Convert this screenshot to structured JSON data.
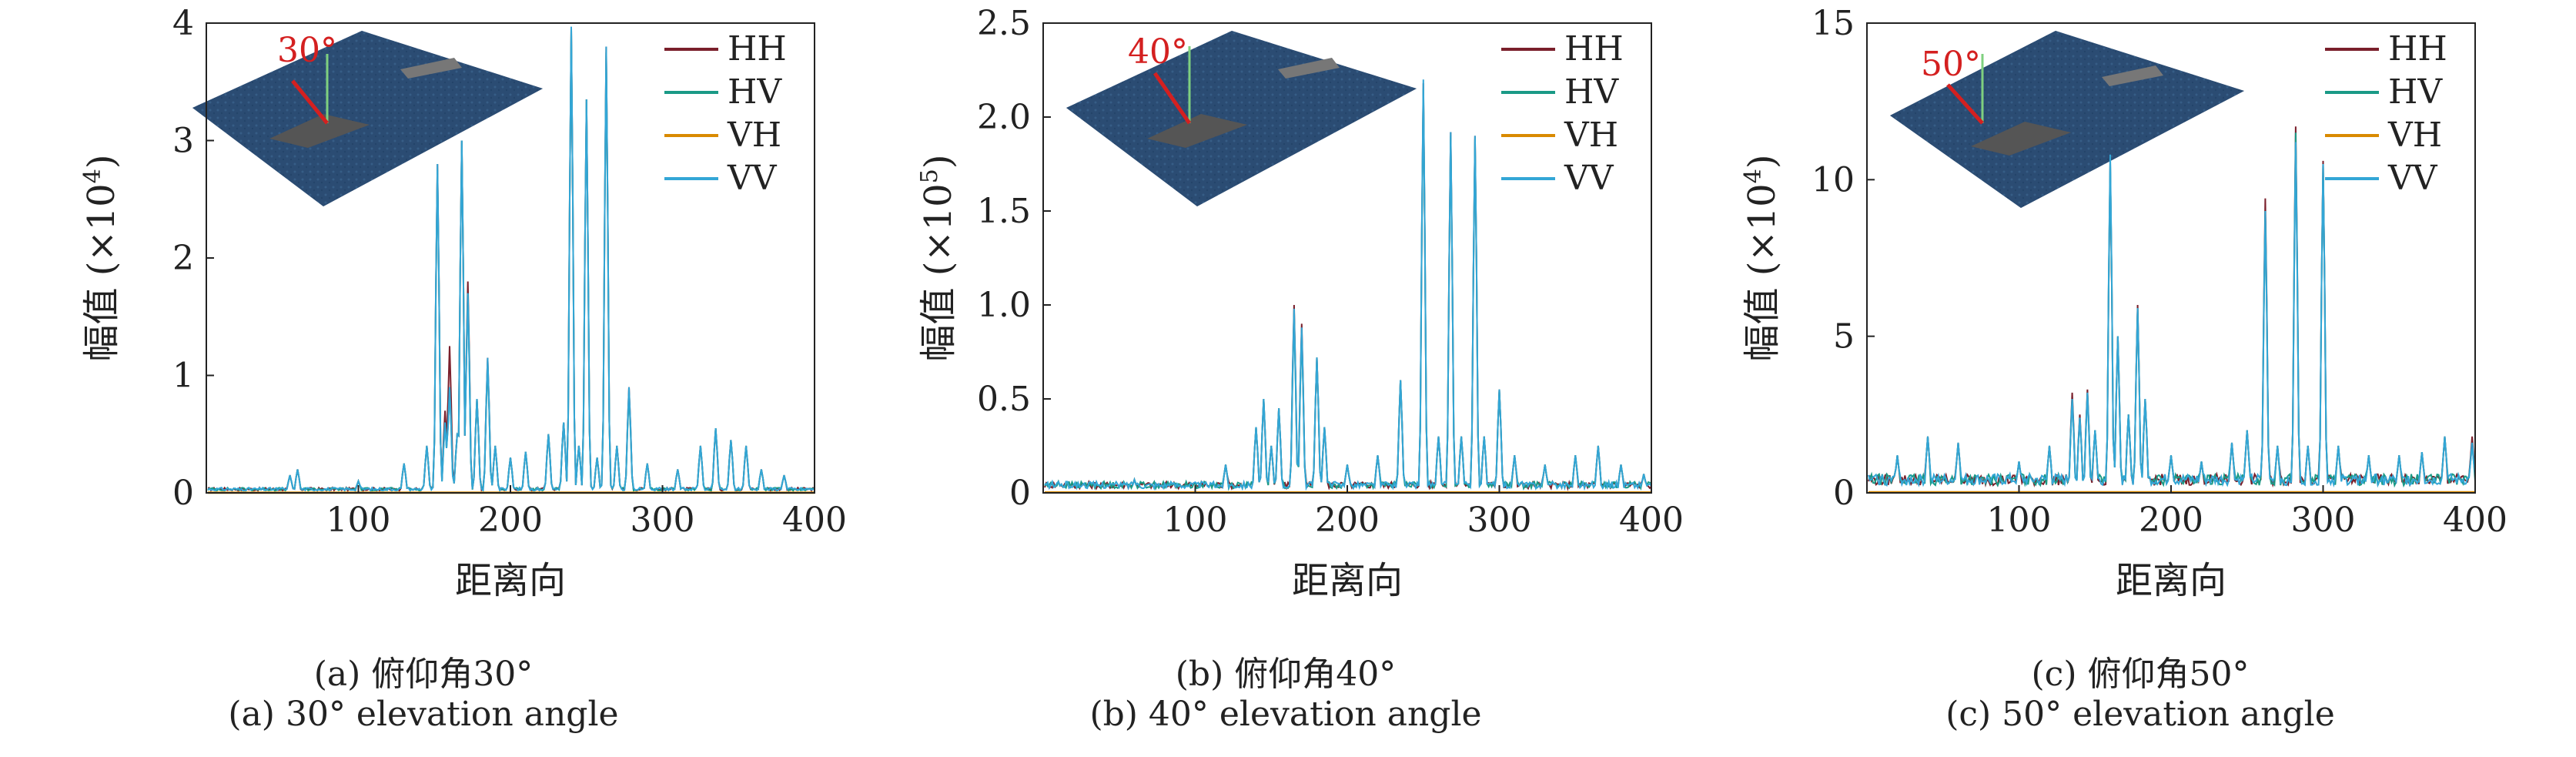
{
  "panels": [
    {
      "id": "a",
      "caption_cn": "(a) 俯仰角30°",
      "caption_en": "(a) 30° elevation angle",
      "inset_angle_label": "30°",
      "ylabel_prefix": "幅值 (×10",
      "ylabel_exp": "4",
      "ylabel_suffix": ")",
      "xlabel": "距离向",
      "xticks": [
        "100",
        "200",
        "300",
        "400"
      ],
      "yticks": [
        "0",
        "1",
        "2",
        "3",
        "4"
      ]
    },
    {
      "id": "b",
      "caption_cn": "(b) 俯仰角40°",
      "caption_en": "(b) 40° elevation angle",
      "inset_angle_label": "40°",
      "ylabel_prefix": "幅值 (×10",
      "ylabel_exp": "5",
      "ylabel_suffix": ")",
      "xlabel": "距离向",
      "xticks": [
        "100",
        "200",
        "300",
        "400"
      ],
      "yticks": [
        "0",
        "0.5",
        "1.0",
        "1.5",
        "2.0",
        "2.5"
      ]
    },
    {
      "id": "c",
      "caption_cn": "(c) 俯仰角50°",
      "caption_en": "(c) 50° elevation angle",
      "inset_angle_label": "50°",
      "ylabel_prefix": "幅值 (×10",
      "ylabel_exp": "4",
      "ylabel_suffix": ")",
      "xlabel": "距离向",
      "xticks": [
        "100",
        "200",
        "300",
        "400"
      ],
      "yticks": [
        "0",
        "5",
        "10",
        "15"
      ]
    }
  ],
  "colors": {
    "HH": "#7a1f2b",
    "HV": "#1a9a86",
    "VH": "#d98a00",
    "VV": "#33a6d6",
    "inset_sea": "#2c4f78",
    "angle_red": "#d42020"
  },
  "chart_data": [
    {
      "type": "line",
      "xlim": [
        0,
        400
      ],
      "ylim": [
        0,
        4
      ],
      "grid": false,
      "legend_position": "top-right",
      "baseline": 0.03,
      "peaks": {
        "HH": [
          [
            55,
            0.15
          ],
          [
            60,
            0.2
          ],
          [
            100,
            0.1
          ],
          [
            130,
            0.25
          ],
          [
            145,
            0.4
          ],
          [
            152,
            2.8
          ],
          [
            157,
            0.7
          ],
          [
            160,
            1.25
          ],
          [
            165,
            0.5
          ],
          [
            168,
            3.0
          ],
          [
            172,
            1.8
          ],
          [
            178,
            0.8
          ],
          [
            185,
            1.15
          ],
          [
            190,
            0.4
          ],
          [
            200,
            0.3
          ],
          [
            210,
            0.35
          ],
          [
            225,
            0.5
          ],
          [
            235,
            0.6
          ],
          [
            240,
            3.95
          ],
          [
            245,
            0.4
          ],
          [
            250,
            3.35
          ],
          [
            257,
            0.3
          ],
          [
            263,
            3.8
          ],
          [
            270,
            0.4
          ],
          [
            278,
            0.9
          ],
          [
            290,
            0.25
          ],
          [
            310,
            0.2
          ],
          [
            325,
            0.4
          ],
          [
            335,
            0.55
          ],
          [
            345,
            0.45
          ],
          [
            355,
            0.4
          ],
          [
            365,
            0.2
          ],
          [
            380,
            0.15
          ]
        ],
        "HV": [
          [
            55,
            0.15
          ],
          [
            60,
            0.2
          ],
          [
            100,
            0.1
          ],
          [
            130,
            0.25
          ],
          [
            145,
            0.4
          ],
          [
            152,
            2.75
          ],
          [
            157,
            0.6
          ],
          [
            160,
            0.9
          ],
          [
            165,
            0.5
          ],
          [
            168,
            3.0
          ],
          [
            172,
            1.7
          ],
          [
            178,
            0.8
          ],
          [
            185,
            1.1
          ],
          [
            190,
            0.4
          ],
          [
            200,
            0.3
          ],
          [
            210,
            0.35
          ],
          [
            225,
            0.5
          ],
          [
            235,
            0.6
          ],
          [
            240,
            3.95
          ],
          [
            245,
            0.4
          ],
          [
            250,
            3.35
          ],
          [
            257,
            0.3
          ],
          [
            263,
            3.75
          ],
          [
            270,
            0.4
          ],
          [
            278,
            0.85
          ],
          [
            290,
            0.25
          ],
          [
            310,
            0.2
          ],
          [
            325,
            0.4
          ],
          [
            335,
            0.55
          ],
          [
            345,
            0.45
          ],
          [
            355,
            0.4
          ],
          [
            365,
            0.2
          ],
          [
            380,
            0.15
          ]
        ],
        "VH": [
          [
            160,
            0.01
          ]
        ],
        "VV": [
          [
            55,
            0.15
          ],
          [
            60,
            0.2
          ],
          [
            100,
            0.1
          ],
          [
            130,
            0.25
          ],
          [
            145,
            0.4
          ],
          [
            152,
            2.8
          ],
          [
            157,
            0.6
          ],
          [
            160,
            0.9
          ],
          [
            165,
            0.5
          ],
          [
            168,
            3.0
          ],
          [
            172,
            1.7
          ],
          [
            178,
            0.8
          ],
          [
            185,
            1.15
          ],
          [
            190,
            0.4
          ],
          [
            200,
            0.3
          ],
          [
            210,
            0.35
          ],
          [
            225,
            0.5
          ],
          [
            235,
            0.6
          ],
          [
            240,
            3.97
          ],
          [
            245,
            0.4
          ],
          [
            250,
            3.35
          ],
          [
            257,
            0.3
          ],
          [
            263,
            3.8
          ],
          [
            270,
            0.4
          ],
          [
            278,
            0.9
          ],
          [
            290,
            0.25
          ],
          [
            310,
            0.2
          ],
          [
            325,
            0.4
          ],
          [
            335,
            0.55
          ],
          [
            345,
            0.45
          ],
          [
            355,
            0.4
          ],
          [
            365,
            0.2
          ],
          [
            380,
            0.15
          ]
        ]
      },
      "legend": [
        "HH",
        "HV",
        "VH",
        "VV"
      ]
    },
    {
      "type": "line",
      "xlim": [
        0,
        400
      ],
      "ylim": [
        0,
        2.5
      ],
      "grid": false,
      "legend_position": "top-right",
      "baseline": 0.04,
      "peaks": {
        "HH": [
          [
            10,
            0.06
          ],
          [
            60,
            0.07
          ],
          [
            120,
            0.15
          ],
          [
            140,
            0.35
          ],
          [
            145,
            0.5
          ],
          [
            150,
            0.25
          ],
          [
            155,
            0.45
          ],
          [
            165,
            1.0
          ],
          [
            170,
            0.9
          ],
          [
            180,
            0.72
          ],
          [
            185,
            0.35
          ],
          [
            200,
            0.15
          ],
          [
            220,
            0.2
          ],
          [
            235,
            0.6
          ],
          [
            250,
            2.18
          ],
          [
            260,
            0.3
          ],
          [
            268,
            1.92
          ],
          [
            275,
            0.3
          ],
          [
            284,
            1.9
          ],
          [
            290,
            0.3
          ],
          [
            300,
            0.55
          ],
          [
            310,
            0.2
          ],
          [
            330,
            0.15
          ],
          [
            350,
            0.2
          ],
          [
            365,
            0.25
          ],
          [
            380,
            0.15
          ],
          [
            395,
            0.1
          ]
        ],
        "HV": [
          [
            10,
            0.06
          ],
          [
            60,
            0.07
          ],
          [
            120,
            0.15
          ],
          [
            140,
            0.35
          ],
          [
            145,
            0.5
          ],
          [
            150,
            0.25
          ],
          [
            155,
            0.45
          ],
          [
            165,
            0.95
          ],
          [
            170,
            0.85
          ],
          [
            180,
            0.72
          ],
          [
            185,
            0.35
          ],
          [
            200,
            0.15
          ],
          [
            220,
            0.2
          ],
          [
            235,
            0.6
          ],
          [
            250,
            2.15
          ],
          [
            260,
            0.3
          ],
          [
            268,
            1.9
          ],
          [
            275,
            0.3
          ],
          [
            284,
            1.88
          ],
          [
            290,
            0.3
          ],
          [
            300,
            0.55
          ],
          [
            310,
            0.2
          ],
          [
            330,
            0.15
          ],
          [
            350,
            0.2
          ],
          [
            365,
            0.25
          ],
          [
            380,
            0.15
          ],
          [
            395,
            0.1
          ]
        ],
        "VH": [
          [
            160,
            0.005
          ]
        ],
        "VV": [
          [
            10,
            0.06
          ],
          [
            60,
            0.07
          ],
          [
            120,
            0.15
          ],
          [
            140,
            0.35
          ],
          [
            145,
            0.5
          ],
          [
            150,
            0.25
          ],
          [
            155,
            0.45
          ],
          [
            165,
            0.98
          ],
          [
            170,
            0.88
          ],
          [
            180,
            0.72
          ],
          [
            185,
            0.35
          ],
          [
            200,
            0.15
          ],
          [
            220,
            0.2
          ],
          [
            235,
            0.6
          ],
          [
            250,
            2.2
          ],
          [
            260,
            0.3
          ],
          [
            268,
            1.92
          ],
          [
            275,
            0.3
          ],
          [
            284,
            1.9
          ],
          [
            290,
            0.3
          ],
          [
            300,
            0.55
          ],
          [
            310,
            0.2
          ],
          [
            330,
            0.15
          ],
          [
            350,
            0.2
          ],
          [
            365,
            0.25
          ],
          [
            380,
            0.15
          ],
          [
            395,
            0.1
          ]
        ]
      },
      "legend": [
        "HH",
        "HV",
        "VH",
        "VV"
      ]
    },
    {
      "type": "line",
      "xlim": [
        0,
        400
      ],
      "ylim": [
        0,
        15
      ],
      "grid": false,
      "legend_position": "top-right",
      "baseline": 0.4,
      "peaks": {
        "HH": [
          [
            20,
            1.2
          ],
          [
            40,
            1.8
          ],
          [
            60,
            1.6
          ],
          [
            100,
            1.0
          ],
          [
            120,
            1.5
          ],
          [
            135,
            3.2
          ],
          [
            140,
            2.5
          ],
          [
            145,
            3.3
          ],
          [
            150,
            2.0
          ],
          [
            160,
            10.5
          ],
          [
            165,
            5.0
          ],
          [
            172,
            2.5
          ],
          [
            178,
            6.0
          ],
          [
            183,
            3.0
          ],
          [
            200,
            1.2
          ],
          [
            220,
            1.0
          ],
          [
            240,
            1.6
          ],
          [
            250,
            2.0
          ],
          [
            262,
            9.4
          ],
          [
            270,
            1.5
          ],
          [
            282,
            11.7
          ],
          [
            290,
            1.5
          ],
          [
            300,
            10.6
          ],
          [
            310,
            1.5
          ],
          [
            330,
            1.2
          ],
          [
            350,
            1.2
          ],
          [
            365,
            1.3
          ],
          [
            380,
            1.8
          ],
          [
            398,
            1.8
          ]
        ],
        "HV": [
          [
            20,
            1.2
          ],
          [
            40,
            1.8
          ],
          [
            60,
            1.6
          ],
          [
            100,
            1.0
          ],
          [
            120,
            1.5
          ],
          [
            135,
            3.0
          ],
          [
            140,
            2.4
          ],
          [
            145,
            3.2
          ],
          [
            150,
            2.0
          ],
          [
            160,
            10.6
          ],
          [
            165,
            5.0
          ],
          [
            172,
            2.5
          ],
          [
            178,
            5.9
          ],
          [
            183,
            3.0
          ],
          [
            200,
            1.2
          ],
          [
            220,
            1.0
          ],
          [
            240,
            1.6
          ],
          [
            250,
            2.0
          ],
          [
            262,
            9.0
          ],
          [
            270,
            1.5
          ],
          [
            282,
            11.5
          ],
          [
            290,
            1.5
          ],
          [
            300,
            10.5
          ],
          [
            310,
            1.5
          ],
          [
            330,
            1.2
          ],
          [
            350,
            1.2
          ],
          [
            365,
            1.3
          ],
          [
            380,
            1.8
          ],
          [
            398,
            1.6
          ]
        ],
        "VH": [
          [
            160,
            0.02
          ]
        ],
        "VV": [
          [
            20,
            1.2
          ],
          [
            40,
            1.8
          ],
          [
            60,
            1.6
          ],
          [
            100,
            1.0
          ],
          [
            120,
            1.5
          ],
          [
            135,
            3.0
          ],
          [
            140,
            2.4
          ],
          [
            145,
            3.2
          ],
          [
            150,
            2.0
          ],
          [
            160,
            10.8
          ],
          [
            165,
            5.0
          ],
          [
            172,
            2.5
          ],
          [
            178,
            5.9
          ],
          [
            183,
            3.0
          ],
          [
            200,
            1.2
          ],
          [
            220,
            1.0
          ],
          [
            240,
            1.6
          ],
          [
            250,
            2.0
          ],
          [
            262,
            9.0
          ],
          [
            270,
            1.5
          ],
          [
            282,
            11.2
          ],
          [
            290,
            1.5
          ],
          [
            300,
            10.5
          ],
          [
            310,
            1.5
          ],
          [
            330,
            1.2
          ],
          [
            350,
            1.2
          ],
          [
            365,
            1.3
          ],
          [
            380,
            1.8
          ],
          [
            398,
            1.6
          ]
        ]
      },
      "legend": [
        "HH",
        "HV",
        "VH",
        "VV"
      ]
    }
  ]
}
